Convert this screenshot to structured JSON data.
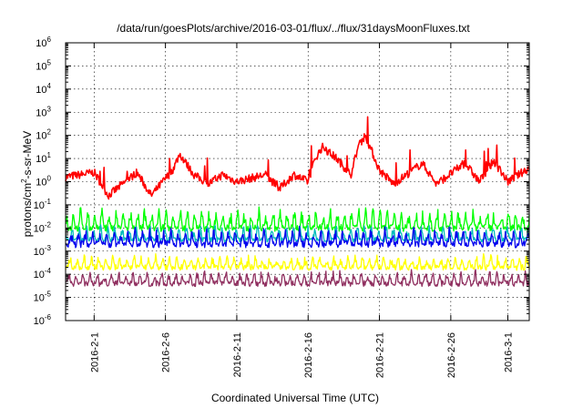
{
  "chart_data": {
    "type": "line",
    "title": "/data/run/goesPlots/archive/2016-03-01/flux/../flux/31daysMoonFluxes.txt",
    "xlabel": "Coordinated Universal Time (UTC)",
    "ylabel_parts": [
      "protons/cm",
      "2",
      "-s-sr-MeV"
    ],
    "y_scale": "log",
    "ylim": [
      1e-06,
      1000000.0
    ],
    "y_ticks": [
      {
        "base": "10",
        "exp": "-6",
        "value": -6
      },
      {
        "base": "10",
        "exp": "-5",
        "value": -5
      },
      {
        "base": "10",
        "exp": "-4",
        "value": -4
      },
      {
        "base": "10",
        "exp": "-3",
        "value": -3
      },
      {
        "base": "10",
        "exp": "-2",
        "value": -2
      },
      {
        "base": "10",
        "exp": "-1",
        "value": -1
      },
      {
        "base": "10",
        "exp": "0",
        "value": 0
      },
      {
        "base": "10",
        "exp": "1",
        "value": 1
      },
      {
        "base": "10",
        "exp": "2",
        "value": 2
      },
      {
        "base": "10",
        "exp": "3",
        "value": 3
      },
      {
        "base": "10",
        "exp": "4",
        "value": 4
      },
      {
        "base": "10",
        "exp": "5",
        "value": 5
      },
      {
        "base": "10",
        "exp": "6",
        "value": 6
      }
    ],
    "xlim": [
      "2016-01-30 00:00",
      "2016-03-02 12:00"
    ],
    "x_ticks": [
      "2016-2-1",
      "2016-2-6",
      "2016-2-11",
      "2016-2-16",
      "2016-2-21",
      "2016-2-26",
      "2016-3-1"
    ],
    "grid": true,
    "legend": "none",
    "series": [
      {
        "color": "#ff0000",
        "y": 0.2,
        "amp": 0.6,
        "period": 1.6,
        "noise": 0.35,
        "pts": [
          [
            "2016-01-30 00:00",
            0.2
          ],
          [
            "2016-02-01 00:00",
            0.4
          ],
          [
            "2016-02-02 00:00",
            -0.6
          ],
          [
            "2016-02-04 00:00",
            0.4
          ],
          [
            "2016-02-05 00:00",
            -0.6
          ],
          [
            "2016-02-06 12:00",
            0.5
          ],
          [
            "2016-02-07 00:00",
            1.2
          ],
          [
            "2016-02-08 00:00",
            0.3
          ],
          [
            "2016-02-09 00:00",
            -0.1
          ],
          [
            "2016-02-10 00:00",
            0.3
          ],
          [
            "2016-02-11 00:00",
            0.0
          ],
          [
            "2016-02-13 00:00",
            0.3
          ],
          [
            "2016-02-14 00:00",
            -0.3
          ],
          [
            "2016-02-15 00:00",
            0.3
          ],
          [
            "2016-02-16 00:00",
            0.0
          ],
          [
            "2016-02-16 12:00",
            1.0
          ],
          [
            "2016-02-17 00:00",
            1.5
          ],
          [
            "2016-02-18 00:00",
            1.0
          ],
          [
            "2016-02-19 00:00",
            0.3
          ],
          [
            "2016-02-19 12:00",
            1.5
          ],
          [
            "2016-02-20 00:00",
            2.0
          ],
          [
            "2016-02-21 00:00",
            0.5
          ],
          [
            "2016-02-22 00:00",
            -0.1
          ],
          [
            "2016-02-24 00:00",
            0.8
          ],
          [
            "2016-02-25 00:00",
            -0.1
          ],
          [
            "2016-02-27 00:00",
            0.8
          ],
          [
            "2016-02-28 00:00",
            0.0
          ],
          [
            "2016-02-29 00:00",
            0.9
          ],
          [
            "2016-03-01 00:00",
            0.0
          ],
          [
            "2016-03-02 12:00",
            0.6
          ]
        ]
      },
      {
        "color": "#00ff00",
        "y": -2.0,
        "amp": 0.55,
        "period": 0.5,
        "noise": 0.3
      },
      {
        "color": "#00bbbb",
        "y": -2.5,
        "amp": 0.4,
        "period": 0.5,
        "noise": 0.2
      },
      {
        "color": "#0000ee",
        "y": -2.7,
        "amp": 0.45,
        "period": 0.5,
        "noise": 0.3
      },
      {
        "color": "#ffff00",
        "y": -3.7,
        "amp": 0.35,
        "period": 0.5,
        "noise": 0.25
      },
      {
        "color": "#903060",
        "y": -4.4,
        "amp": 0.35,
        "period": 0.5,
        "noise": 0.25
      }
    ]
  }
}
